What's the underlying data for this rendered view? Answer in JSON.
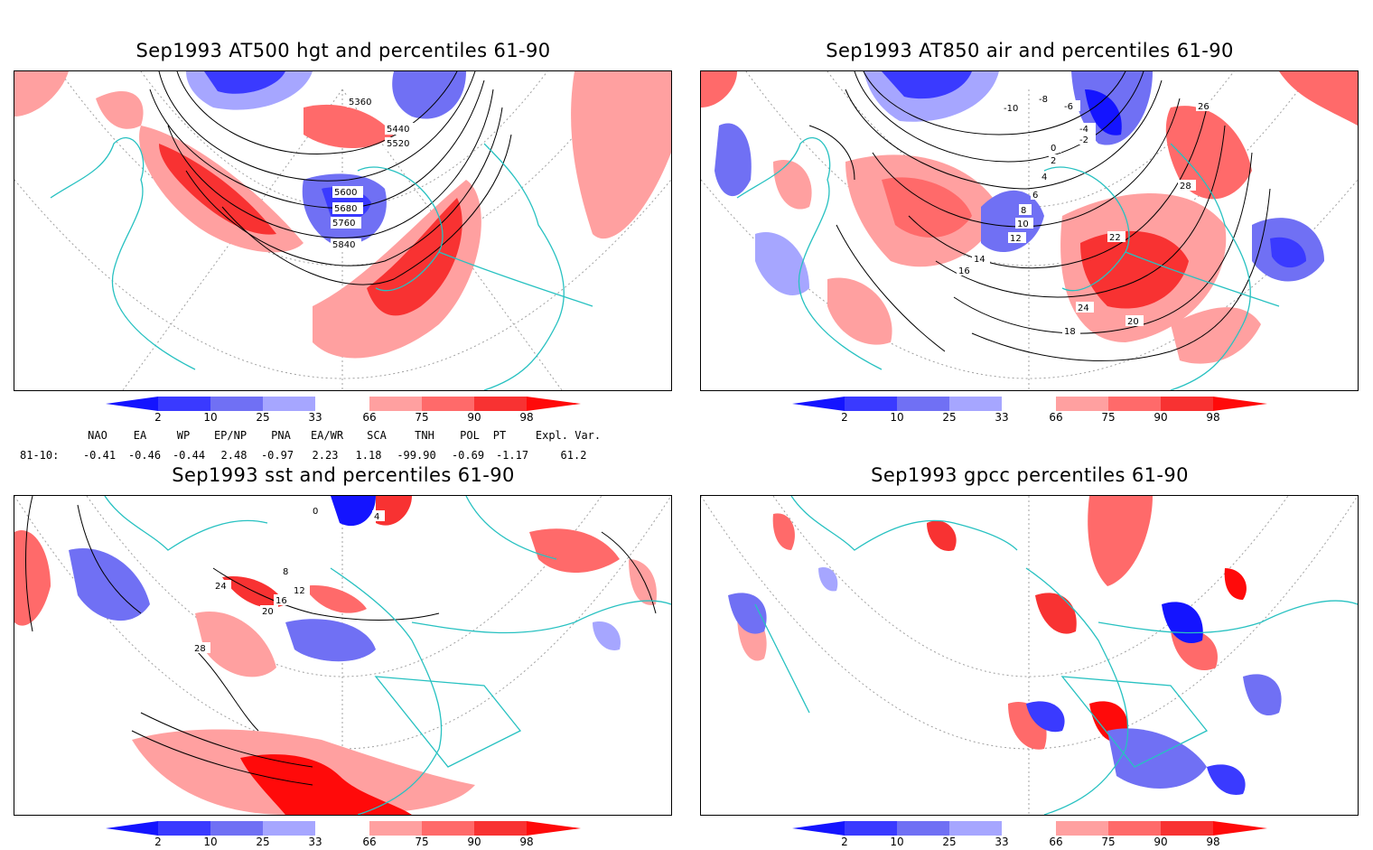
{
  "panels": [
    {
      "title": "Sep1993 AT500 hgt and percentiles 61-90",
      "field": "hgt500",
      "contour_labels": [
        "5360",
        "5440",
        "5520",
        "5600",
        "5680",
        "5760",
        "5840"
      ]
    },
    {
      "title": "Sep1993 AT850 air and percentiles 61-90",
      "field": "air850",
      "contour_labels": [
        "-10",
        "-8",
        "-6",
        "-4",
        "-2",
        "0",
        "2",
        "4",
        "6",
        "8",
        "10",
        "12",
        "14",
        "16",
        "18",
        "20",
        "22",
        "24",
        "26",
        "28"
      ]
    },
    {
      "title": "Sep1993 sst and percentiles 61-90",
      "field": "sst",
      "contour_labels": [
        "0",
        "4",
        "8",
        "12",
        "16",
        "20",
        "24",
        "28"
      ]
    },
    {
      "title": "Sep1993 gpcc percentiles 61-90",
      "field": "gpcc",
      "contour_labels": []
    }
  ],
  "colorbar": {
    "labels": [
      "2",
      "10",
      "25",
      "33",
      "66",
      "75",
      "90",
      "98"
    ],
    "colors": {
      "below_2": "#1414ff",
      "c2_10": "#3a3aff",
      "c10_25": "#7070f4",
      "c25_33": "#a6a6ff",
      "c33_66": "#ffffff",
      "c66_75": "#ffa0a0",
      "c75_90": "#ff6a6a",
      "c90_98": "#f83232",
      "above_98": "#ff0a0a"
    }
  },
  "indices": {
    "row_label": "81-10:",
    "headers": [
      "NAO",
      "EA",
      "WP",
      "EP/NP",
      "PNA",
      "EA/WR",
      "SCA",
      "TNH",
      "POL",
      "PT",
      "Expl. Var."
    ],
    "values": [
      "-0.41",
      "-0.46",
      "-0.44",
      "2.48",
      "-0.97",
      "2.23",
      "1.18",
      "-99.90",
      "-0.69",
      "-1.17",
      "61.2"
    ]
  },
  "map_colors": {
    "coast": "#27c1c1",
    "grid": "#a0a0a0",
    "contour": "#000000"
  }
}
